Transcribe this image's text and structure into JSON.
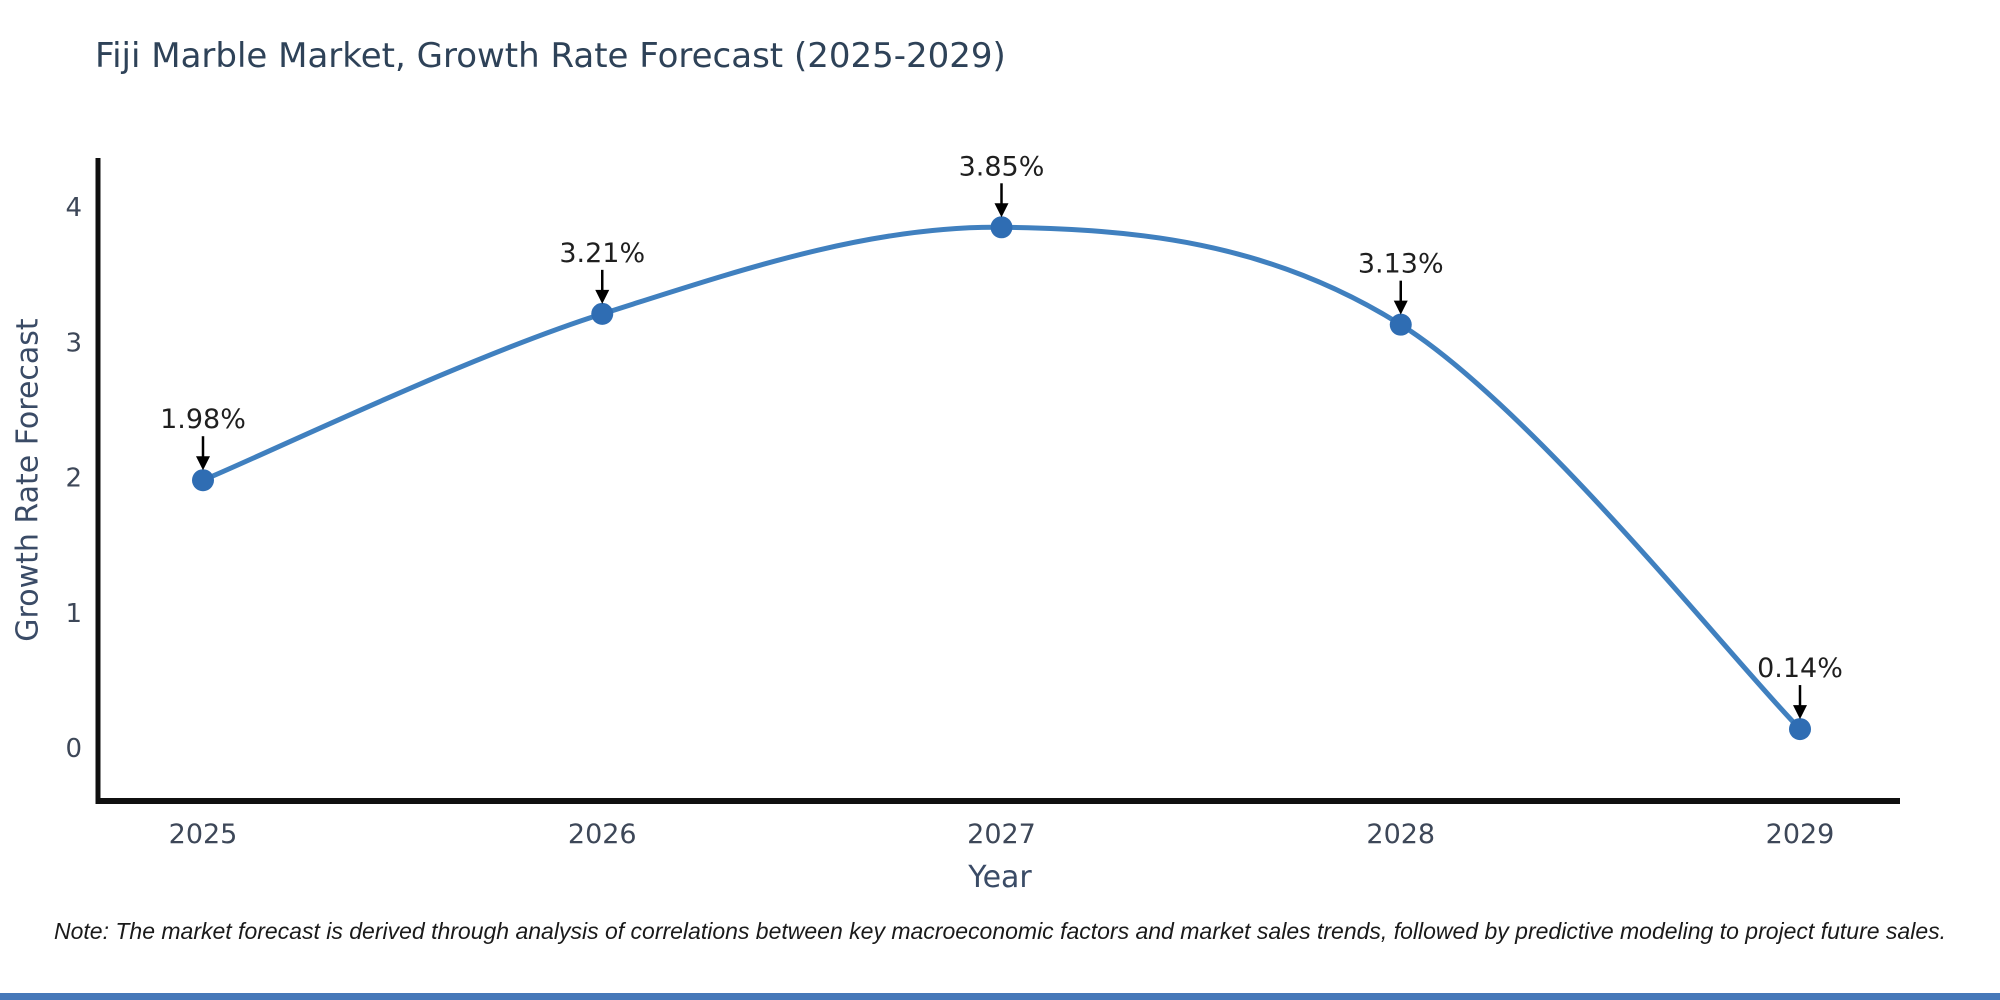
{
  "page": {
    "background": "#ffffff",
    "accent_bar_color": "#4678b9",
    "note": "Note: The market forecast is derived through analysis of correlations between key macroeconomic factors and market sales trends, followed by predictive modeling to project future sales."
  },
  "chart_data": {
    "type": "line",
    "title": "Fiji Marble Market, Growth Rate Forecast (2025-2029)",
    "xlabel": "Year",
    "ylabel": "Growth Rate Forecast",
    "categories": [
      "2025",
      "2026",
      "2027",
      "2028",
      "2029"
    ],
    "series": [
      {
        "name": "Growth Rate Forecast",
        "values": [
          1.98,
          3.21,
          3.85,
          3.13,
          0.14
        ]
      }
    ],
    "point_labels": [
      "1.98%",
      "3.21%",
      "3.85%",
      "3.13%",
      "0.14%"
    ],
    "ylim": [
      0,
      4
    ],
    "yticks": [
      0,
      1,
      2,
      3,
      4
    ],
    "grid": false,
    "legend": "none",
    "annotation_style": "value labels above points with black arrows pointing down to markers",
    "line_color": "#4080bf",
    "marker_color": "#2f6db3",
    "axis_color": "#101010",
    "tick_color": "#3d4758",
    "annotation_text_color": "#1f1f1f",
    "title_color": "#2e4258"
  }
}
